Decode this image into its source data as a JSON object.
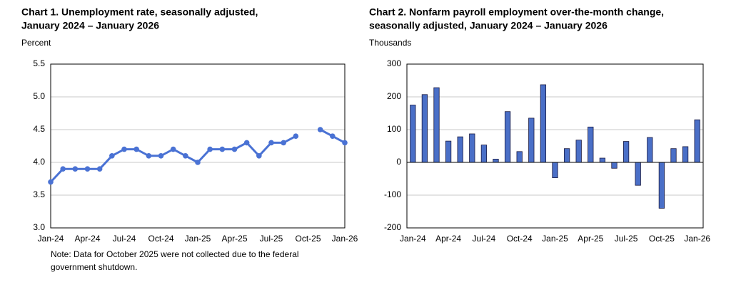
{
  "chart_data": [
    {
      "type": "line",
      "title": [
        "Chart 1. Unemployment rate, seasonally adjusted,",
        "January 2024 – January 2026"
      ],
      "y_label": "Percent",
      "categories": [
        "Jan-24",
        null,
        null,
        "Apr-24",
        null,
        null,
        "Jul-24",
        null,
        null,
        "Oct-24",
        null,
        null,
        "Jan-25",
        null,
        null,
        "Apr-25",
        null,
        null,
        "Jul-25",
        null,
        null,
        "Oct-25",
        null,
        null,
        "Jan-26"
      ],
      "values": [
        3.7,
        3.9,
        3.9,
        3.9,
        3.9,
        4.1,
        4.2,
        4.2,
        4.1,
        4.1,
        4.2,
        4.1,
        4.0,
        4.2,
        4.2,
        4.2,
        4.3,
        4.1,
        4.3,
        4.3,
        4.4,
        null,
        4.5,
        4.4,
        4.3
      ],
      "color": "#4a72d4",
      "ylim": [
        3.0,
        5.5
      ],
      "yticks": [
        {
          "value": 3,
          "label": "3.0"
        },
        3.5,
        {
          "value": 4,
          "label": "4.0"
        },
        4.5,
        {
          "value": 5,
          "label": "5.0"
        },
        5.5
      ],
      "grid": true,
      "note": [
        "Note: Data for October 2025 were not collected due to the federal",
        "government shutdown."
      ]
    },
    {
      "type": "bar",
      "title": [
        "Chart 2. Nonfarm payroll employment over-the-month change,",
        "seasonally adjusted, January 2024 – January 2026"
      ],
      "y_label": "Thousands",
      "categories": [
        "Jan-24",
        null,
        null,
        "Apr-24",
        null,
        null,
        "Jul-24",
        null,
        null,
        "Oct-24",
        null,
        null,
        "Jan-25",
        null,
        null,
        "Apr-25",
        null,
        null,
        "Jul-25",
        null,
        null,
        "Oct-25",
        null,
        null,
        "Jan-26"
      ],
      "values": [
        175,
        207,
        228,
        65,
        78,
        87,
        53,
        10,
        155,
        33,
        135,
        237,
        -47,
        42,
        68,
        108,
        13,
        -18,
        64,
        -70,
        76,
        -140,
        42,
        48,
        130
      ],
      "color": "#4a6fc7",
      "ylim": [
        -200,
        300
      ],
      "yticks": [
        -200,
        -100,
        0,
        100,
        200,
        300
      ],
      "grid": true
    }
  ]
}
